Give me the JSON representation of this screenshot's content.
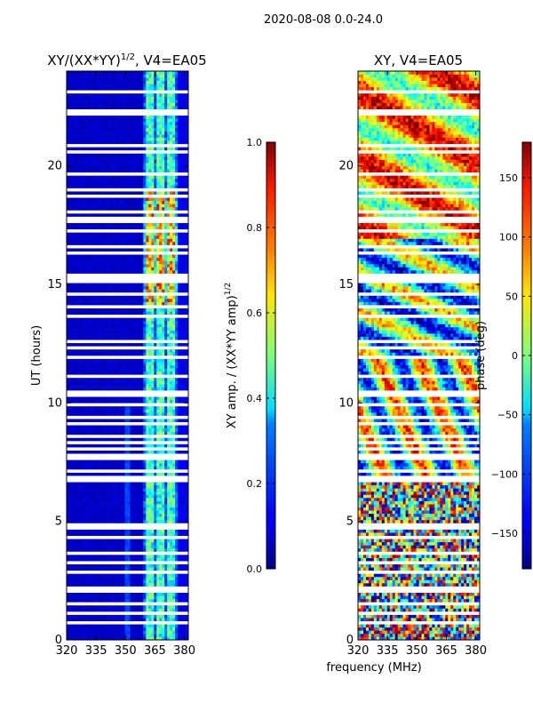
{
  "suptitle": "2020-08-08 0.0-24.0",
  "chart_data": [
    {
      "type": "heatmap",
      "title_main": "XY/(XX*YY)",
      "title_exp": "1/2",
      "title_tail": ", V4=EA05",
      "ylabel": "UT (hours)",
      "xlabel": "",
      "xlim": [
        320,
        382
      ],
      "ylim": [
        0,
        24
      ],
      "xticks": [
        320,
        335,
        350,
        365,
        380
      ],
      "yticks": [
        0,
        5,
        10,
        15,
        20
      ],
      "colormap": "jet",
      "colorbar": {
        "label_main": "XY amp. / (XX*YY amp)",
        "label_exp": "1/2",
        "range": [
          0.0,
          1.0
        ],
        "ticks": [
          "0.0",
          "0.2",
          "0.4",
          "0.6",
          "0.8",
          "1.0"
        ],
        "tick_values": [
          0.0,
          0.2,
          0.4,
          0.6,
          0.8,
          1.0
        ]
      }
    },
    {
      "type": "heatmap",
      "title": "XY, V4=EA05",
      "ylabel": "",
      "xlabel": "frequency (MHz)",
      "xlim": [
        320,
        382
      ],
      "ylim": [
        0,
        24
      ],
      "xticks": [
        320,
        335,
        350,
        365,
        380
      ],
      "yticks": [
        0,
        5,
        10,
        15,
        20
      ],
      "colormap": "jet",
      "colorbar": {
        "label": "phase (deg)",
        "range": [
          -180,
          180
        ],
        "ticks": [
          "−150",
          "−100",
          "−50",
          "0",
          "50",
          "100",
          "150"
        ],
        "tick_values": [
          -150,
          -100,
          -50,
          0,
          50,
          100,
          150
        ]
      }
    }
  ],
  "flagged_hours": [
    0.6,
    1.0,
    1.5,
    2.0,
    2.15,
    2.8,
    3.2,
    3.6,
    4.2,
    4.7,
    4.8,
    6.7,
    6.85,
    7.0,
    7.6,
    7.75,
    8.0,
    8.3,
    8.5,
    9.0,
    9.3,
    9.8,
    10.3,
    10.45,
    11.0,
    11.9,
    12.3,
    12.5,
    13.6,
    14.0,
    14.5,
    15.0,
    15.15,
    15.3,
    16.3,
    16.5,
    17.2,
    17.6,
    17.7,
    18.0,
    18.7,
    18.9,
    19.6,
    20.5,
    20.8,
    22.1,
    22.2,
    23.0,
    23.05
  ]
}
